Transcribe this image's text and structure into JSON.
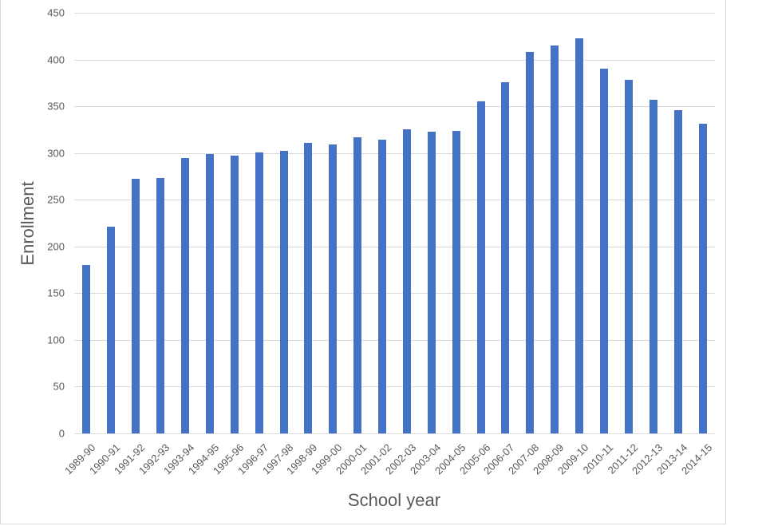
{
  "chart_data": {
    "type": "bar",
    "title": "",
    "xlabel": "School year",
    "ylabel": "Enrollment",
    "ylim": [
      0,
      450
    ],
    "yticks": [
      0,
      50,
      100,
      150,
      200,
      250,
      300,
      350,
      400,
      450
    ],
    "grid": true,
    "legend": null,
    "bar_color": "#4472c4",
    "categories": [
      "1989-90",
      "1990-91",
      "1991-92",
      "1992-93",
      "1993-94",
      "1994-95",
      "1995-96",
      "1996-97",
      "1997-98",
      "1998-99",
      "1999-00",
      "2000-01",
      "2001-02",
      "2002-03",
      "2003-04",
      "2004-05",
      "2005-06",
      "2006-07",
      "2007-08",
      "2008-09",
      "2009-10",
      "2010-11",
      "2011-12",
      "2012-13",
      "2013-14",
      "2014-15"
    ],
    "values": [
      180,
      221,
      272,
      273,
      295,
      299,
      297,
      301,
      302,
      311,
      309,
      317,
      314,
      325,
      323,
      324,
      355,
      376,
      408,
      415,
      423,
      390,
      378,
      357,
      346,
      331
    ]
  }
}
